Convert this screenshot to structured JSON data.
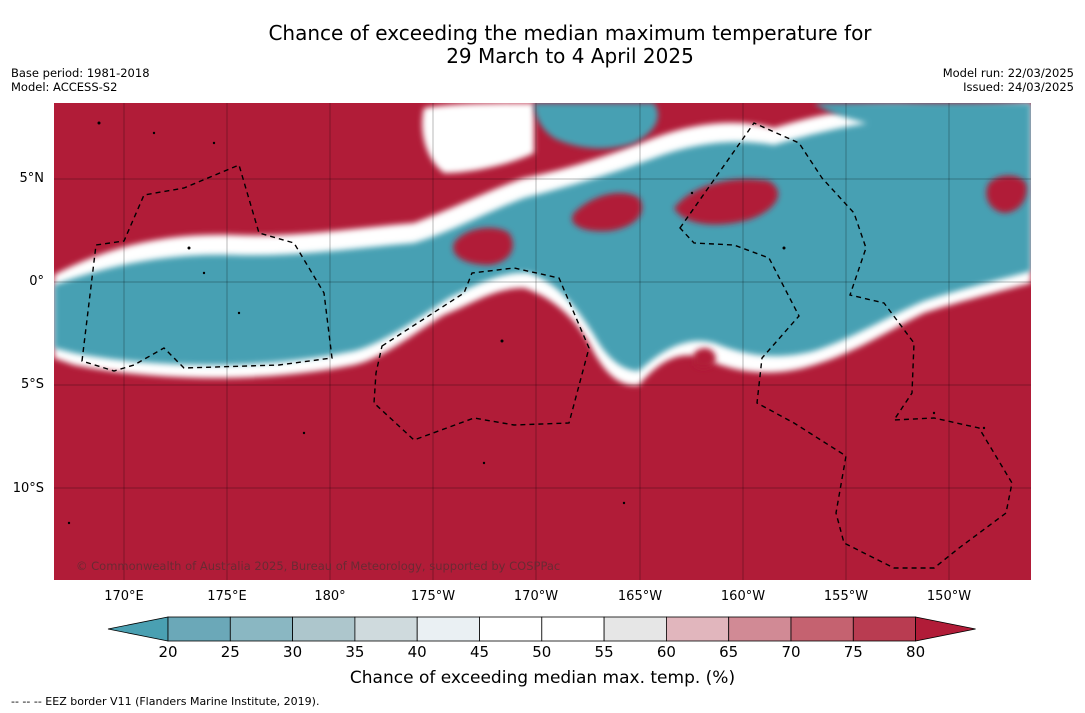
{
  "title": {
    "line1": "Chance of exceeding the median maximum temperature for",
    "line2": "29 March to 4 April 2025"
  },
  "meta": {
    "base_period": "Base period: 1981-2018",
    "model": "Model: ACCESS-S2",
    "model_run": "Model run: 22/03/2025",
    "issued": "Issued: 24/03/2025"
  },
  "map": {
    "copyright": "© Commonwealth of Australia 2025, Bureau of Meteorology, supported by COSPPac",
    "lat_labels": [
      "5°N",
      "0°",
      "5°S",
      "10°S"
    ],
    "lon_labels": [
      "170°E",
      "175°E",
      "180°",
      "175°W",
      "170°W",
      "165°W",
      "160°W",
      "155°W",
      "150°W"
    ],
    "colors": {
      "below": "#46a0b3",
      "near": "#ffffff",
      "above": "#b11c38"
    }
  },
  "colorbar": {
    "ticks": [
      "20",
      "25",
      "30",
      "35",
      "40",
      "45",
      "50",
      "55",
      "60",
      "65",
      "70",
      "75",
      "80"
    ],
    "colors": [
      "#4aa0b2",
      "#6ba8b8",
      "#8ab7c2",
      "#adc6cc",
      "#cfdadd",
      "#eaf0f3",
      "#ffffff",
      "#ffffff",
      "#e6e6e6",
      "#e1b6bd",
      "#d18a95",
      "#c56270",
      "#b93c51",
      "#b11c38"
    ],
    "label": "Chance of exceeding median max. temp. (%)"
  },
  "footer": "--  --  -- EEZ border V11 (Flanders Marine Institute, 2019)."
}
